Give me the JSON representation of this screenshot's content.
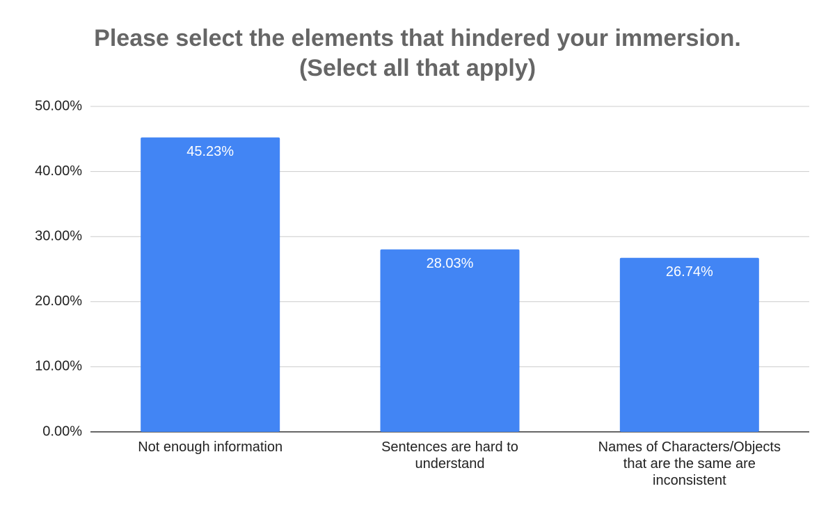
{
  "chart_data": {
    "type": "bar",
    "title": [
      "Please select the elements that hindered your immersion.",
      "(Select all that apply)"
    ],
    "categories": [
      "Not enough information",
      "Sentences are hard to understand",
      "Names of Characters/Objects that are the same are inconsistent"
    ],
    "values": [
      45.23,
      28.03,
      26.74
    ],
    "value_labels": [
      "45.23%",
      "28.03%",
      "26.74%"
    ],
    "color": "#4285f4",
    "ylim": [
      0,
      50
    ],
    "yticks": [
      {
        "value": 0,
        "label": "0.00%"
      },
      {
        "value": 10,
        "label": "10.00%"
      },
      {
        "value": 20,
        "label": "20.00%"
      },
      {
        "value": 30,
        "label": "30.00%"
      },
      {
        "value": 40,
        "label": "40.00%"
      },
      {
        "value": 50,
        "label": "50.00%"
      }
    ],
    "grid": true
  }
}
